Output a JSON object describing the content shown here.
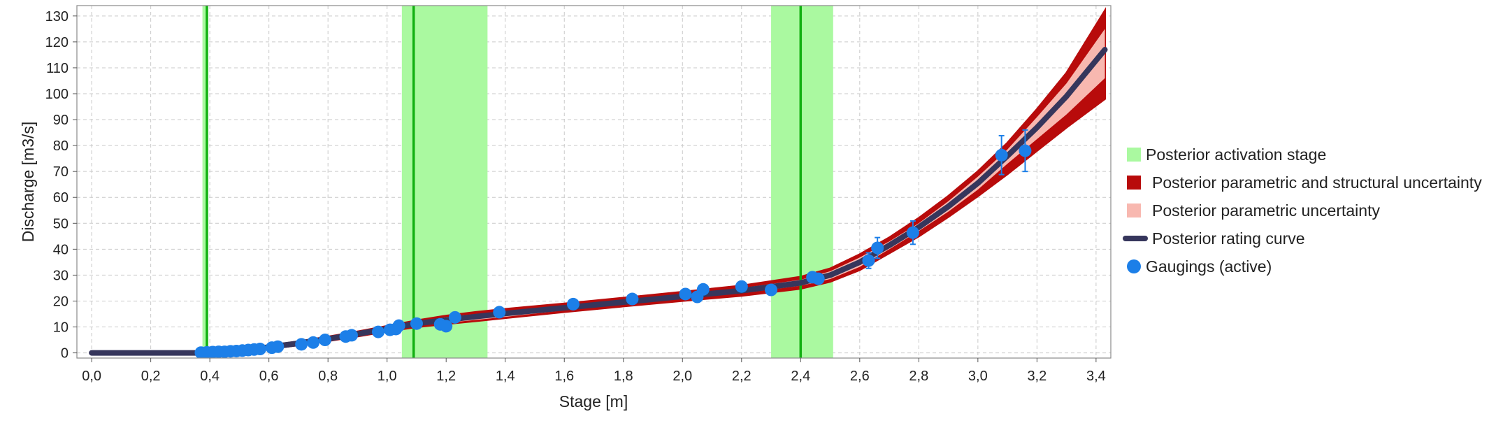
{
  "chart_data": {
    "type": "line",
    "xlabel": "Stage  [m]",
    "ylabel": "Discharge [m3/s]",
    "xlim": [
      -0.05,
      3.45
    ],
    "ylim": [
      -2,
      134
    ],
    "x_ticks": [
      0,
      0.2,
      0.4,
      0.6,
      0.8,
      1.0,
      1.2,
      1.4,
      1.6,
      1.8,
      2.0,
      2.2,
      2.4,
      2.6,
      2.8,
      3.0,
      3.2,
      3.4
    ],
    "x_tick_labels": [
      "0,0",
      "0,2",
      "0,4",
      "0,6",
      "0,8",
      "1,0",
      "1,2",
      "1,4",
      "1,6",
      "1,8",
      "2,0",
      "2,2",
      "2,4",
      "2,6",
      "2,8",
      "3,0",
      "3,2",
      "3,4"
    ],
    "y_ticks": [
      0,
      10,
      20,
      30,
      40,
      50,
      60,
      70,
      80,
      90,
      100,
      110,
      120,
      130
    ],
    "y_tick_labels": [
      "0",
      "10",
      "20",
      "30",
      "40",
      "50",
      "60",
      "70",
      "80",
      "90",
      "100",
      "110",
      "120",
      "130"
    ],
    "grid": true,
    "legend_position": "right",
    "legend": [
      {
        "label": "Posterior activation stage",
        "kind": "band-swatch",
        "color": "#aaf9a0"
      },
      {
        "label": "Posterior parametric and structural uncertainty",
        "kind": "square",
        "color": "#b80b0b"
      },
      {
        "label": "Posterior parametric uncertainty",
        "kind": "square",
        "color": "#f8b8b0"
      },
      {
        "label": "Posterior rating curve",
        "kind": "line",
        "color": "#36365c"
      },
      {
        "label": "Gaugings (active)",
        "kind": "dot",
        "color": "#1c7fe8"
      }
    ],
    "activation_stages": [
      {
        "median": 0.39,
        "low": 0.375,
        "high": 0.395
      },
      {
        "median": 1.09,
        "low": 1.05,
        "high": 1.34
      },
      {
        "median": 2.4,
        "low": 2.3,
        "high": 2.51
      }
    ],
    "series": [
      {
        "name": "Posterior rating curve",
        "x": [
          0.0,
          0.37,
          0.4,
          0.5,
          0.6,
          0.7,
          0.8,
          0.9,
          1.0,
          1.1,
          1.2,
          1.3,
          1.4,
          1.6,
          1.8,
          2.0,
          2.2,
          2.4,
          2.5,
          2.6,
          2.7,
          2.8,
          2.9,
          3.0,
          3.1,
          3.2,
          3.3,
          3.43
        ],
        "y": [
          0.0,
          0.0,
          0.3,
          1.0,
          2.2,
          3.7,
          5.4,
          7.3,
          9.3,
          11.3,
          12.7,
          14.0,
          15.2,
          17.4,
          19.6,
          21.8,
          24.0,
          27.0,
          30.0,
          35.0,
          41.5,
          48.5,
          56.5,
          65.5,
          76.0,
          87.0,
          99.0,
          117.0
        ]
      },
      {
        "name": "Posterior parametric and structural uncertainty",
        "x": [
          0.37,
          0.4,
          0.5,
          0.6,
          0.7,
          0.8,
          0.9,
          1.0,
          1.1,
          1.2,
          1.3,
          1.4,
          1.6,
          1.8,
          2.0,
          2.2,
          2.4,
          2.5,
          2.6,
          2.7,
          2.8,
          2.9,
          3.0,
          3.1,
          3.2,
          3.3,
          3.43
        ],
        "upper": [
          0.2,
          0.6,
          1.5,
          2.8,
          4.4,
          6.2,
          8.2,
          10.3,
          12.5,
          14.3,
          15.7,
          16.9,
          19.0,
          21.2,
          23.5,
          25.9,
          29.3,
          32.5,
          38.0,
          44.5,
          52.0,
          60.5,
          70.0,
          81.0,
          94.0,
          108.0,
          132.0
        ],
        "lower": [
          0.0,
          0.1,
          0.6,
          1.6,
          3.0,
          4.6,
          6.4,
          8.3,
          10.0,
          11.2,
          12.3,
          13.5,
          15.8,
          18.0,
          20.1,
          22.1,
          24.8,
          27.5,
          32.0,
          38.5,
          45.0,
          52.5,
          60.5,
          69.0,
          78.0,
          87.0,
          98.0
        ]
      },
      {
        "name": "Posterior parametric uncertainty",
        "x": [
          0.37,
          0.4,
          0.5,
          0.6,
          0.7,
          0.8,
          0.9,
          1.0,
          1.1,
          1.2,
          1.3,
          1.4,
          1.6,
          1.8,
          2.0,
          2.2,
          2.4,
          2.5,
          2.6,
          2.7,
          2.8,
          2.9,
          3.0,
          3.1,
          3.2,
          3.3,
          3.43
        ],
        "upper": [
          0.1,
          0.4,
          1.2,
          2.5,
          4.0,
          5.8,
          7.8,
          9.9,
          12.2,
          13.8,
          15.0,
          16.1,
          18.2,
          20.4,
          22.7,
          25.0,
          28.2,
          31.5,
          36.8,
          43.0,
          50.0,
          58.5,
          68.0,
          78.5,
          91.0,
          104.0,
          125.0
        ],
        "lower": [
          0.0,
          0.2,
          0.8,
          1.9,
          3.4,
          5.0,
          6.8,
          8.7,
          10.4,
          11.6,
          12.7,
          13.9,
          16.4,
          18.7,
          20.9,
          23.0,
          25.9,
          28.5,
          33.2,
          40.0,
          47.0,
          54.5,
          63.0,
          73.0,
          82.5,
          92.0,
          106.0
        ]
      }
    ],
    "gaugings": {
      "name": "Gaugings (active)",
      "x": [
        0.37,
        0.39,
        0.41,
        0.43,
        0.45,
        0.47,
        0.49,
        0.51,
        0.53,
        0.55,
        0.57,
        0.61,
        0.63,
        0.71,
        0.75,
        0.79,
        0.86,
        0.88,
        0.97,
        1.01,
        1.03,
        1.04,
        1.1,
        1.18,
        1.2,
        1.23,
        1.38,
        1.63,
        1.83,
        2.01,
        2.05,
        2.07,
        2.2,
        2.3,
        2.44,
        2.46,
        2.63,
        2.66,
        2.78,
        3.08,
        3.16
      ],
      "y": [
        0.1,
        0.2,
        0.3,
        0.4,
        0.4,
        0.6,
        0.7,
        0.9,
        1.1,
        1.3,
        1.5,
        2.0,
        2.4,
        3.3,
        4.0,
        5.0,
        6.3,
        6.8,
        8.1,
        8.9,
        9.2,
        10.5,
        11.3,
        11.0,
        10.3,
        13.7,
        15.7,
        18.8,
        20.8,
        22.7,
        21.6,
        24.5,
        25.6,
        24.3,
        29.2,
        28.6,
        35.6,
        40.5,
        46.4,
        76.3,
        78.0
      ],
      "error": [
        0,
        0,
        0,
        0,
        0,
        0,
        0,
        0,
        0,
        0,
        0,
        0,
        0,
        0,
        0,
        0,
        0,
        0,
        0,
        0,
        0,
        0,
        0,
        0,
        0,
        0,
        0,
        0,
        0,
        0,
        0,
        0,
        0,
        0,
        0,
        0,
        3,
        4,
        4.5,
        7.5,
        8
      ]
    },
    "colors": {
      "activation_band": "#aaf9a0",
      "activation_line": "#12b012",
      "structural_band": "#b80b0b",
      "parametric_band": "#f8b8b0",
      "rating_curve": "#36365c",
      "gauging": "#1c7fe8",
      "error_bar": "#1c7fe8",
      "grid": "#c9c9c9"
    }
  }
}
